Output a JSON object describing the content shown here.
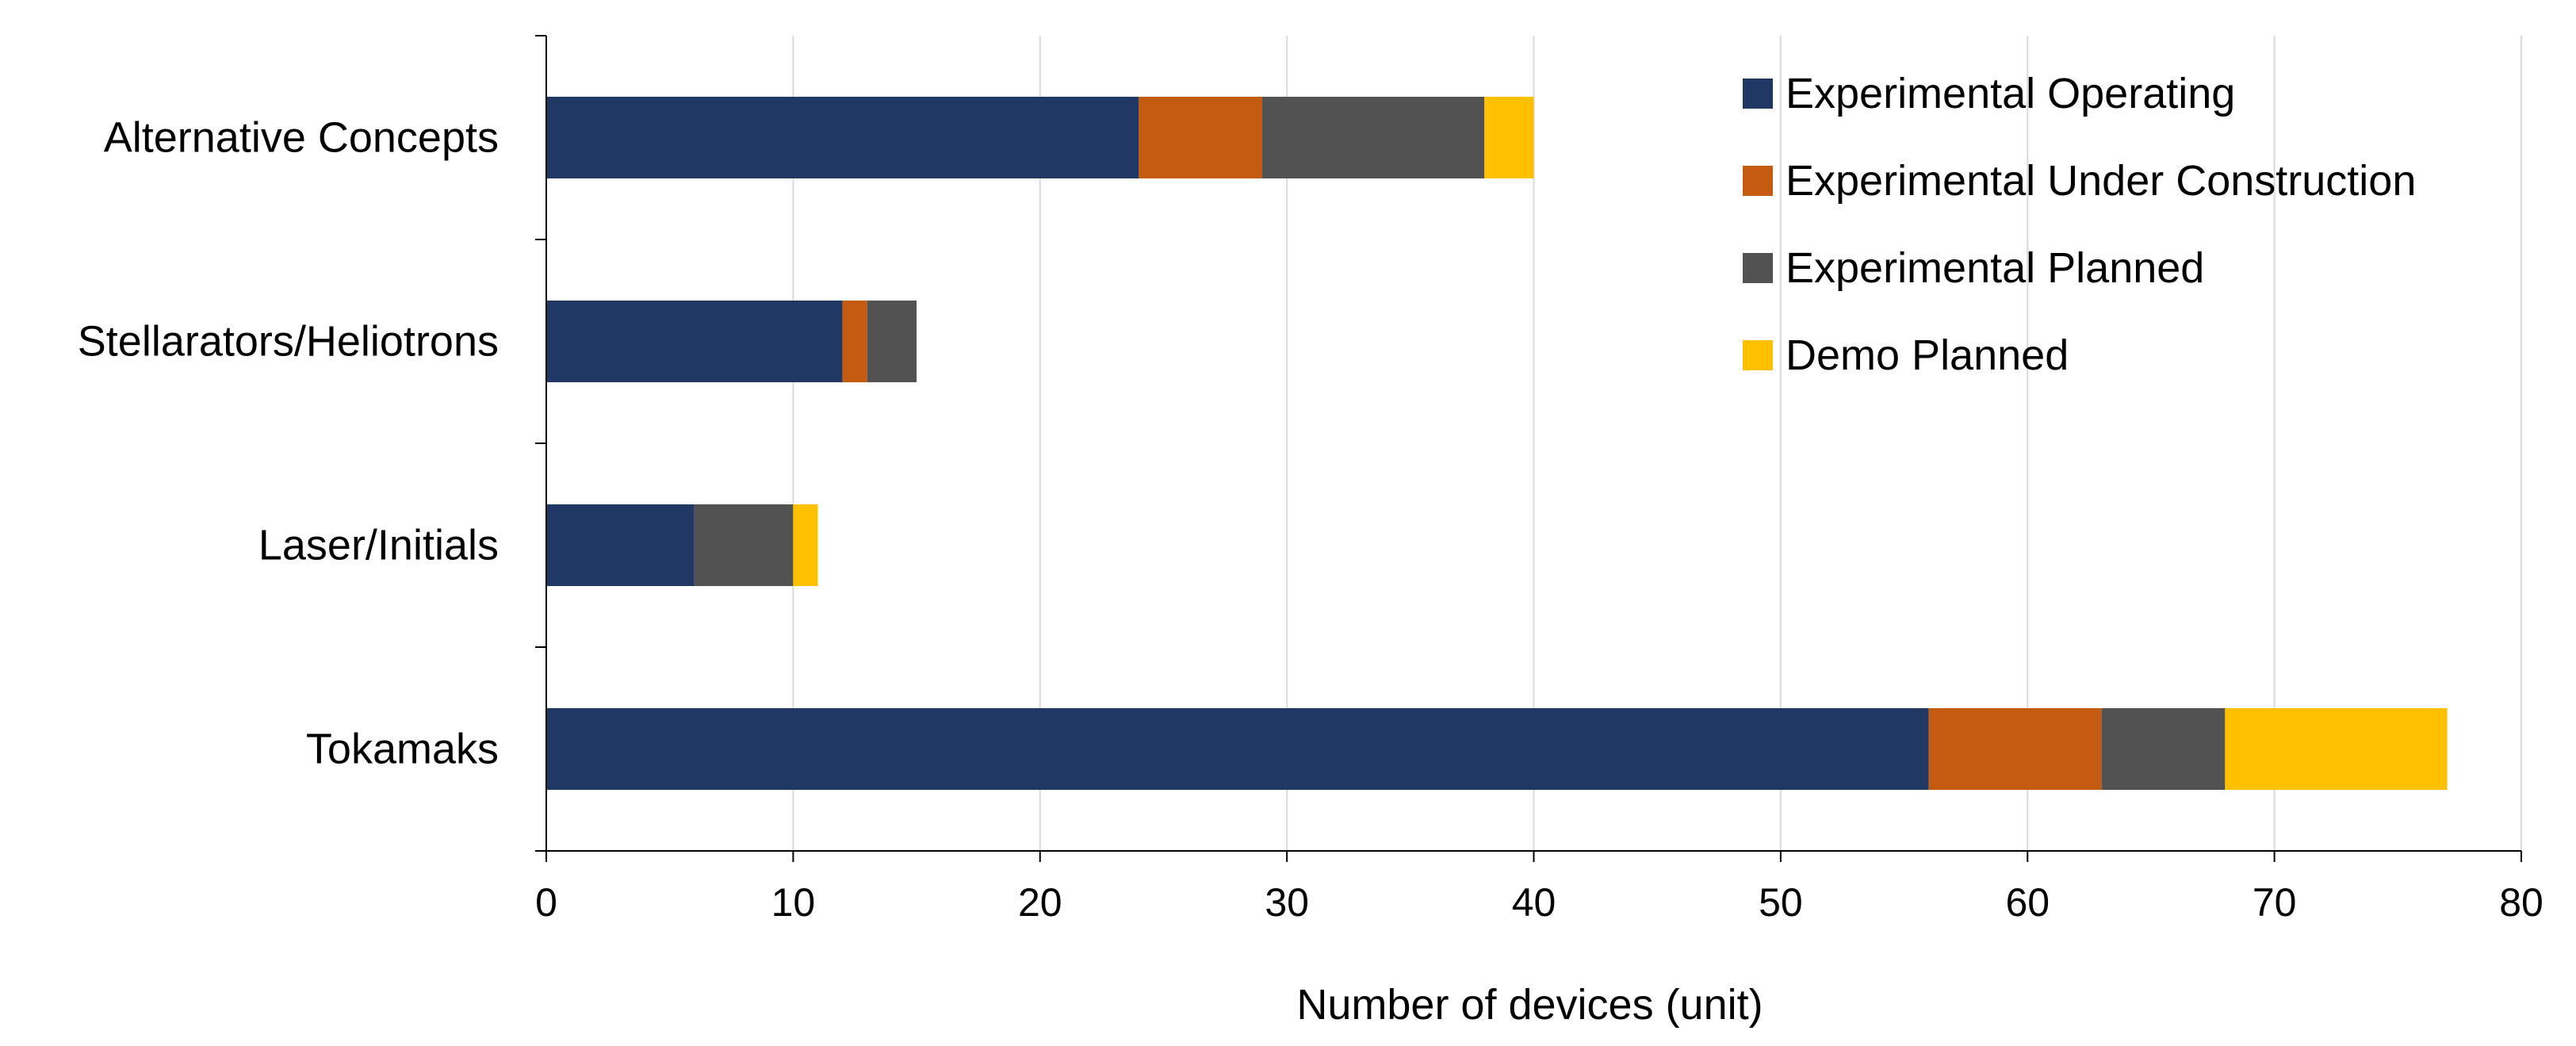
{
  "chart_data": {
    "type": "bar",
    "orientation": "horizontal",
    "stacked": true,
    "title": "",
    "xlabel": "Number of devices (unit)",
    "ylabel": "",
    "xlim": [
      0,
      80
    ],
    "xticks": [
      0,
      10,
      20,
      30,
      40,
      50,
      60,
      70,
      80
    ],
    "grid": "vertical",
    "legend_position": "top-right",
    "categories": [
      "Alternative Concepts",
      "Stellarators/Heliotrons",
      "Laser/Initials",
      "Tokamaks"
    ],
    "series": [
      {
        "name": "Experimental Operating",
        "color": "#203864",
        "values": [
          24,
          12,
          6,
          56
        ]
      },
      {
        "name": "Experimental Under Construction",
        "color": "#C55A11",
        "values": [
          5,
          1,
          0,
          7
        ]
      },
      {
        "name": "Experimental Planned",
        "color": "#525252",
        "values": [
          9,
          2,
          4,
          5
        ]
      },
      {
        "name": "Demo Planned",
        "color": "#FFC000",
        "values": [
          2,
          0,
          1,
          9
        ]
      }
    ]
  }
}
